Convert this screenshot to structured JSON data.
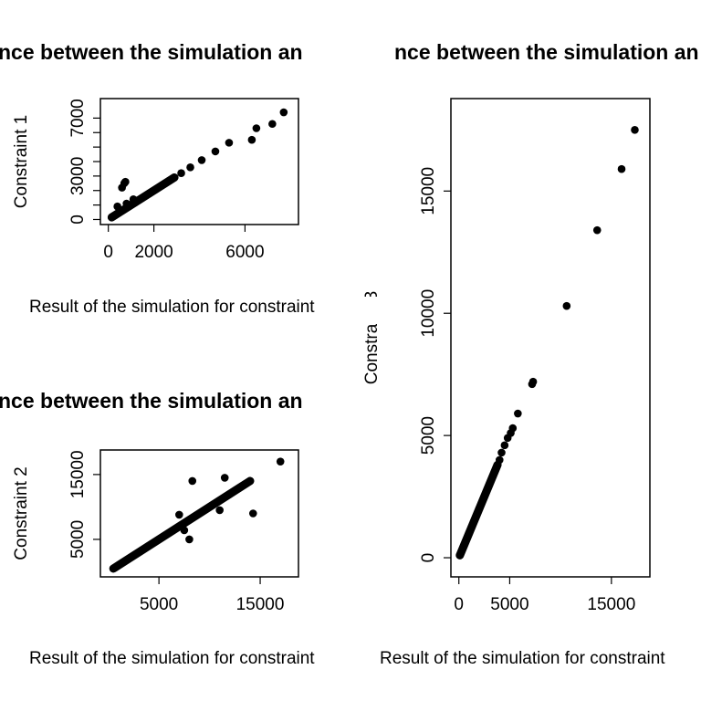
{
  "chart_data": [
    {
      "type": "scatter",
      "title": "nce between the simulation an",
      "xlabel": "Result of the simulation for constraint",
      "ylabel": "Constraint 1",
      "xlim": [
        0,
        8000
      ],
      "ylim": [
        0,
        8000
      ],
      "xticks": [
        0,
        2000,
        6000
      ],
      "yticks": [
        0,
        3000,
        7000
      ],
      "ylabel_ticks_all": [
        0,
        1000,
        2000,
        3000,
        4000,
        5000,
        6000,
        7000
      ],
      "y_tick_labels": [
        "0",
        "3000",
        "7000"
      ],
      "x_tick_labels": [
        "0",
        "2000",
        "6000"
      ],
      "x": [
        150,
        300,
        450,
        650,
        900,
        1200,
        1500,
        1800,
        2100,
        2400,
        2700,
        2900,
        3200,
        3600,
        4100,
        4700,
        5300,
        6300,
        6500,
        7200,
        7700,
        600,
        700,
        750,
        800,
        1100,
        400
      ],
      "y": [
        150,
        300,
        450,
        650,
        900,
        1200,
        1500,
        1800,
        2100,
        2400,
        2700,
        2900,
        3200,
        3600,
        4100,
        4700,
        5300,
        5500,
        6300,
        6600,
        7400,
        2200,
        2500,
        2600,
        1100,
        1400,
        900
      ],
      "line": [
        [
          150,
          150
        ],
        [
          2900,
          2900
        ]
      ],
      "grid": false
    },
    {
      "type": "scatter",
      "title": "nce between the simulation an",
      "xlabel": "Result of the simulation for constraint",
      "ylabel": "Constraint 2",
      "xlim": [
        0,
        18000
      ],
      "ylim": [
        0,
        18000
      ],
      "xticks": [
        5000,
        15000
      ],
      "yticks": [
        5000,
        15000
      ],
      "x_tick_labels": [
        "5000",
        "15000"
      ],
      "y_tick_labels": [
        "5000",
        "15000"
      ],
      "x": [
        500,
        1000,
        2000,
        3000,
        4000,
        5000,
        6000,
        7000,
        8000,
        9000,
        10000,
        11000,
        12000,
        13000,
        14000,
        17000,
        7000,
        7500,
        8000,
        8300,
        11000,
        11500,
        14300
      ],
      "y": [
        500,
        1000,
        2000,
        3000,
        4000,
        5000,
        6000,
        7000,
        8000,
        9000,
        10000,
        11000,
        12000,
        13000,
        14000,
        17000,
        8800,
        6400,
        5000,
        14000,
        9500,
        14500,
        9000
      ],
      "line": [
        [
          500,
          500
        ],
        [
          14000,
          14000
        ]
      ],
      "grid": false
    },
    {
      "type": "scatter",
      "title": "nce between the simulation an",
      "xlabel": "Result of the simulation for constraint",
      "ylabel": "Constraint 3",
      "xlim": [
        0,
        18000
      ],
      "ylim": [
        0,
        18000
      ],
      "xticks": [
        0,
        5000,
        15000
      ],
      "yticks": [
        0,
        5000,
        10000,
        15000
      ],
      "x_tick_labels": [
        "0",
        "5000",
        "15000"
      ],
      "y_tick_labels": [
        "0",
        "5000",
        "10000",
        "15000"
      ],
      "x": [
        100,
        500,
        1000,
        1500,
        2000,
        2500,
        3000,
        3500,
        4000,
        4200,
        4500,
        4800,
        5100,
        5300,
        5800,
        7200,
        7300,
        10600,
        13600,
        16000,
        17300
      ],
      "y": [
        100,
        500,
        1000,
        1500,
        2000,
        2500,
        3000,
        3500,
        4000,
        4300,
        4600,
        4900,
        5100,
        5300,
        5900,
        7100,
        7200,
        10300,
        13400,
        15900,
        17500
      ],
      "line": [
        [
          100,
          100
        ],
        [
          3800,
          3800
        ]
      ],
      "grid": false
    }
  ],
  "titles": {
    "top_left": "nce between the simulation an",
    "top_right": "nce between the simulation an",
    "bottom_left": "nce between the simulation an"
  }
}
